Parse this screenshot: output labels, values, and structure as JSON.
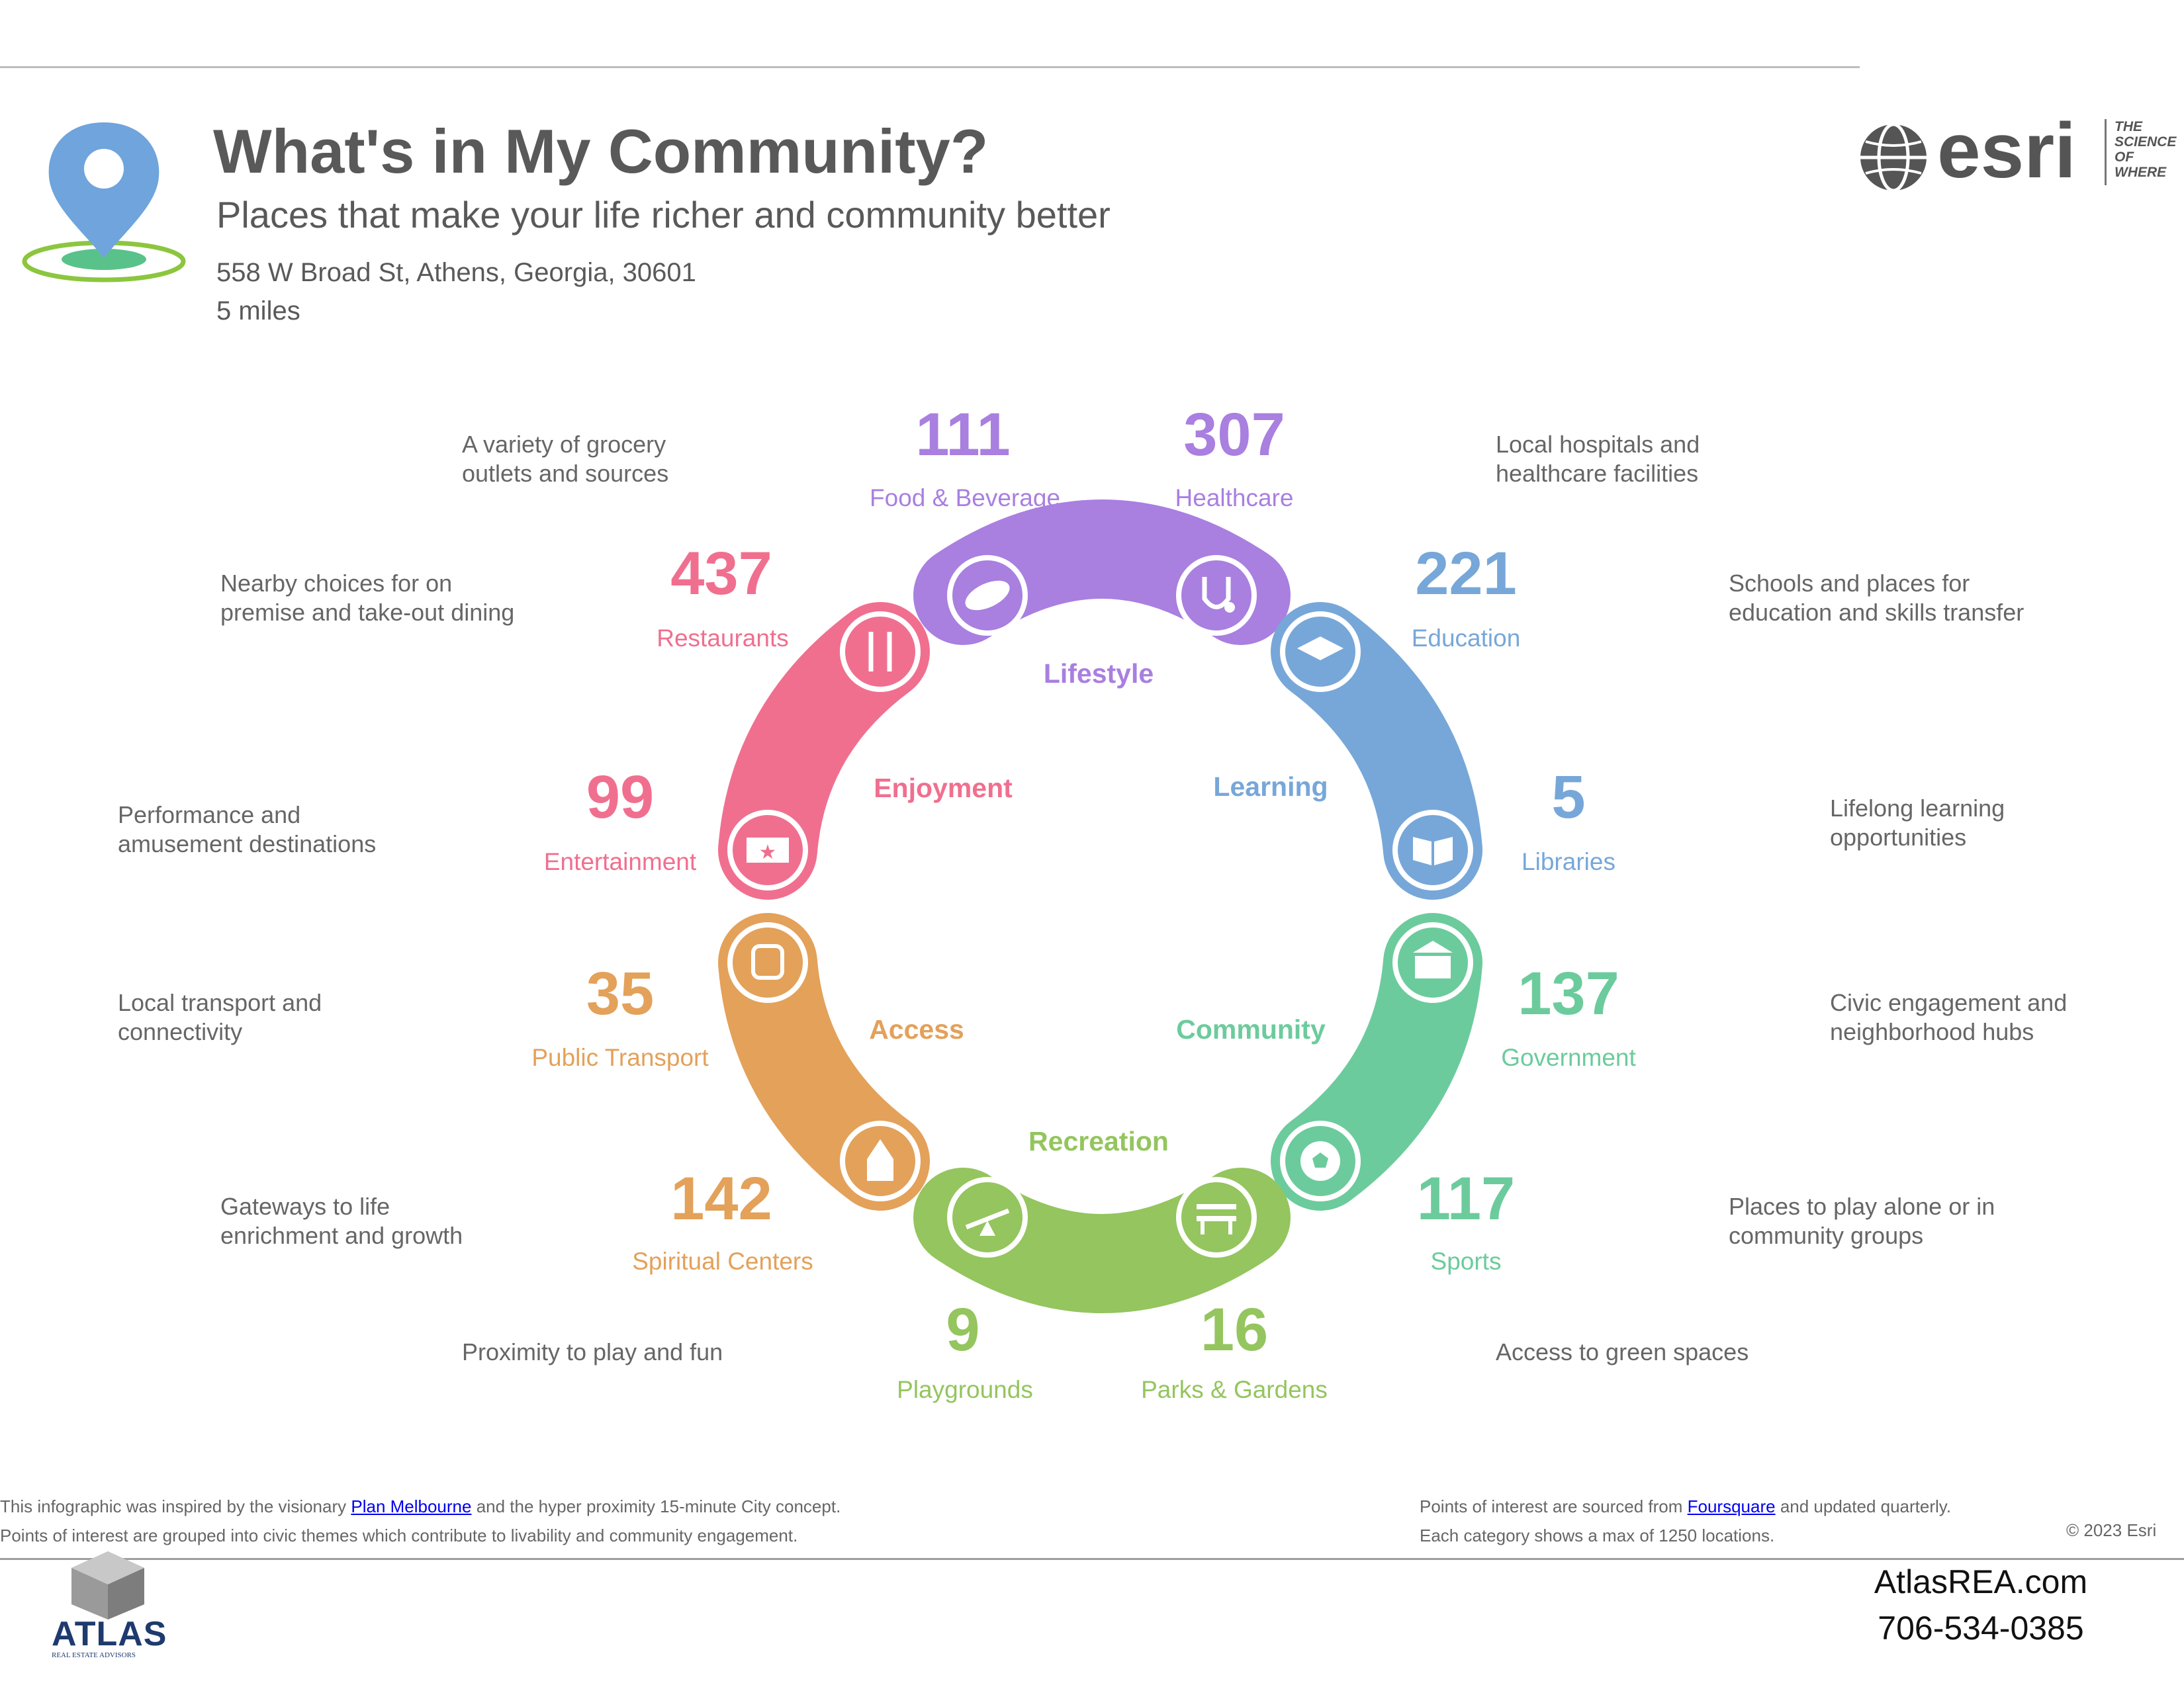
{
  "header": {
    "title": "What's in My Community?",
    "subtitle": "Places that make your life richer and community better",
    "address": "558 W Broad St, Athens, Georgia, 30601",
    "radius": "5 miles"
  },
  "brand": {
    "esri_word": "esri",
    "tagline": [
      "THE",
      "SCIENCE",
      "OF",
      "WHERE"
    ]
  },
  "colors": {
    "lifestyle": "#a97fe0",
    "enjoyment": "#f06f8f",
    "learning": "#77a7d8",
    "access": "#e3a15a",
    "community": "#6ccb9c",
    "recreation": "#94c55e"
  },
  "themes": {
    "lifestyle": "Lifestyle",
    "enjoyment": "Enjoyment",
    "learning": "Learning",
    "access": "Access",
    "community": "Community",
    "recreation": "Recreation"
  },
  "categories": {
    "food": {
      "count": "111",
      "label": "Food & Beverage",
      "desc": [
        "A variety of grocery",
        "outlets and sources"
      ],
      "icon": "bread-icon"
    },
    "healthcare": {
      "count": "307",
      "label": "Healthcare",
      "desc": [
        "Local hospitals and",
        "healthcare facilities"
      ],
      "icon": "stethoscope-icon"
    },
    "restaurants": {
      "count": "437",
      "label": "Restaurants",
      "desc": [
        "Nearby choices for on",
        "premise and take-out dining"
      ],
      "icon": "fork-knife-icon"
    },
    "education": {
      "count": "221",
      "label": "Education",
      "desc": [
        "Schools and places for",
        "education and skills transfer"
      ],
      "icon": "graduation-cap-icon"
    },
    "entertainment": {
      "count": "99",
      "label": "Entertainment",
      "desc": [
        "Performance and",
        "amusement destinations"
      ],
      "icon": "ticket-icon"
    },
    "libraries": {
      "count": "5",
      "label": "Libraries",
      "desc": [
        "Lifelong learning",
        "opportunities"
      ],
      "icon": "book-icon"
    },
    "transport": {
      "count": "35",
      "label": "Public Transport",
      "desc": [
        "Local transport and",
        "connectivity"
      ],
      "icon": "train-icon"
    },
    "government": {
      "count": "137",
      "label": "Government",
      "desc": [
        "Civic engagement and",
        "neighborhood hubs"
      ],
      "icon": "government-building-icon"
    },
    "spiritual": {
      "count": "142",
      "label": "Spiritual Centers",
      "desc": [
        "Gateways to life",
        "enrichment and growth"
      ],
      "icon": "church-icon"
    },
    "sports": {
      "count": "117",
      "label": "Sports",
      "desc": [
        "Places to play alone or in",
        "community groups"
      ],
      "icon": "soccer-ball-icon"
    },
    "playgrounds": {
      "count": "9",
      "label": "Playgrounds",
      "desc": [
        "Proximity to play and fun"
      ],
      "icon": "seesaw-icon"
    },
    "parks": {
      "count": "16",
      "label": "Parks & Gardens",
      "desc": [
        "Access to green spaces"
      ],
      "icon": "park-bench-icon"
    }
  },
  "footer": {
    "left1_pre": "This infographic was inspired by the visionary ",
    "left1_link": "Plan Melbourne",
    "left1_post": " and the hyper proximity 15-minute City concept.",
    "left2": "Points of interest are grouped into civic themes which contribute to livability and community engagement.",
    "right1_pre": "Points of interest are sourced from ",
    "right1_link": "Foursquare",
    "right1_post": " and updated quarterly.",
    "right2": "Each category shows a max of 1250 locations.",
    "copyright": "© 2023 Esri"
  },
  "atlas": {
    "name": "ATLAS",
    "sub": "REAL ESTATE ADVISORS",
    "website": "AtlasREA.com",
    "phone": "706-534-0385"
  }
}
